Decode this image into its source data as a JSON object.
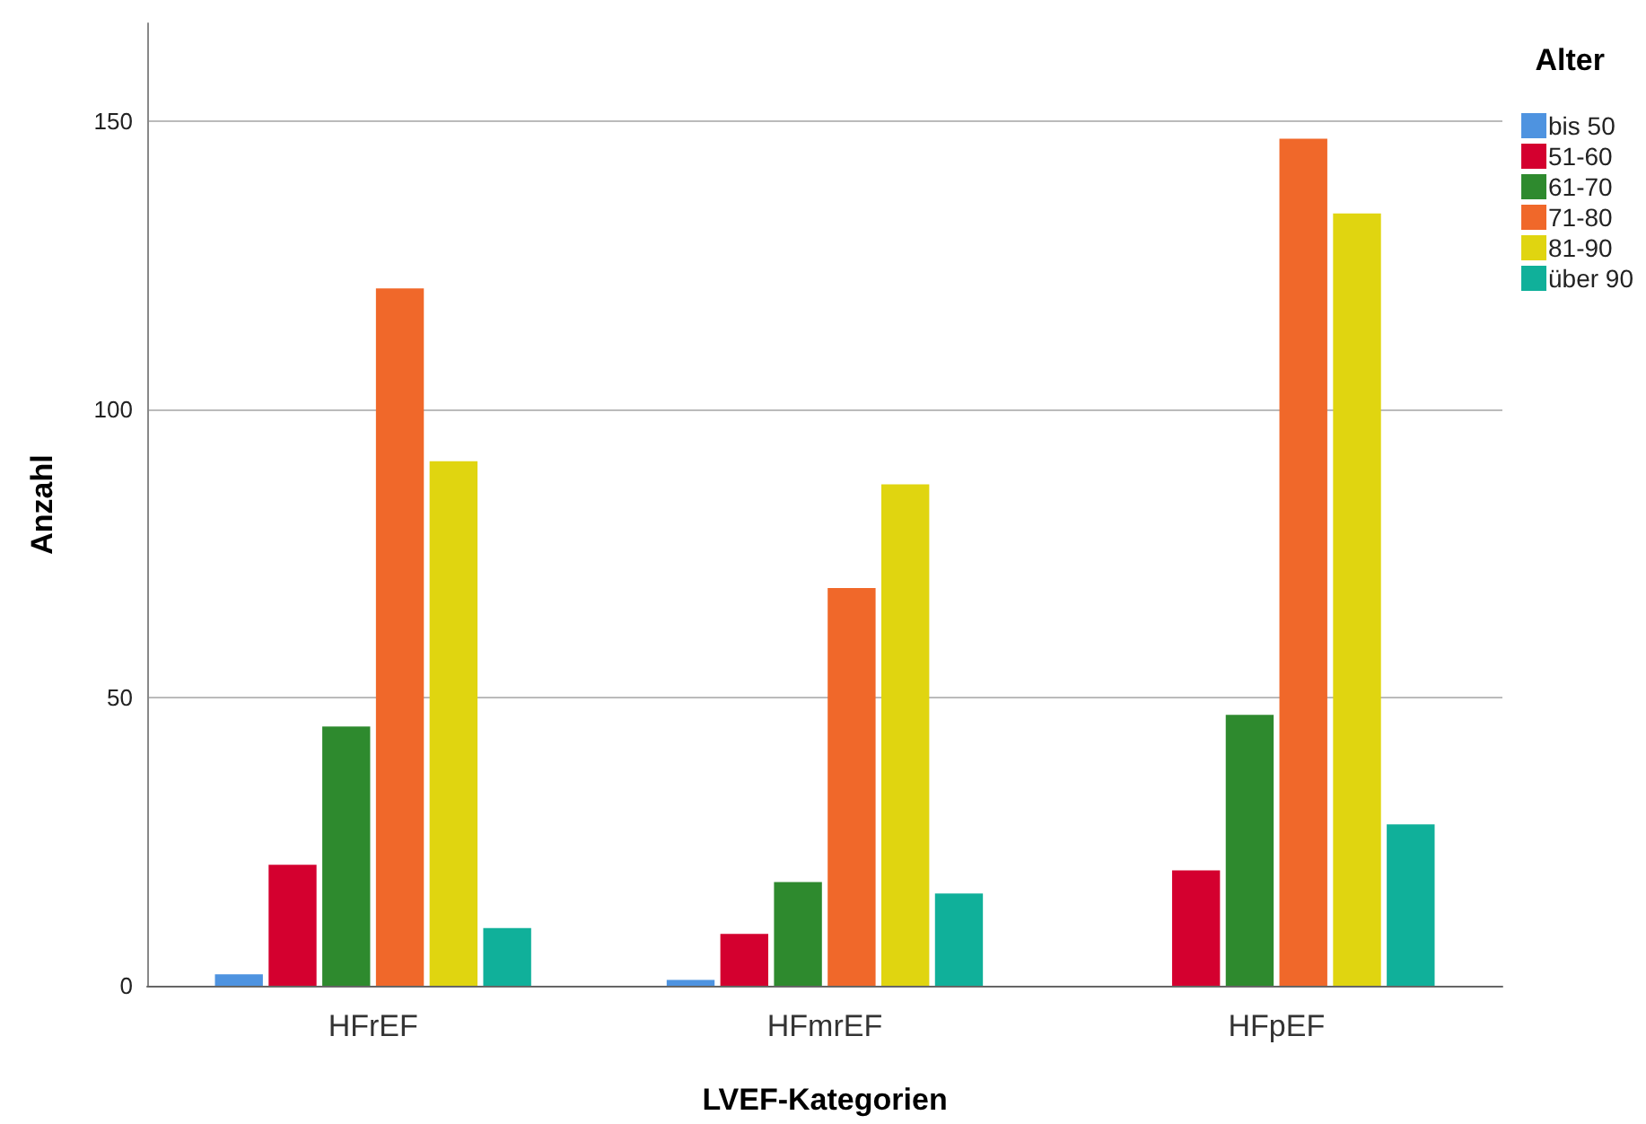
{
  "chart_data": {
    "type": "bar",
    "xlabel": "LVEF-Kategorien",
    "ylabel": "Anzahl",
    "legend_title": "Alter",
    "categories": [
      "HFrEF",
      "HFmrEF",
      "HFpEF"
    ],
    "series": [
      {
        "name": "bis 50",
        "color": "#4e93e0",
        "values": [
          2,
          1,
          0
        ]
      },
      {
        "name": "51-60",
        "color": "#d4002f",
        "values": [
          21,
          9,
          20
        ]
      },
      {
        "name": "61-70",
        "color": "#2e8a2e",
        "values": [
          45,
          18,
          47
        ]
      },
      {
        "name": "71-80",
        "color": "#f0682a",
        "values": [
          121,
          69,
          147
        ]
      },
      {
        "name": "81-90",
        "color": "#e0d510",
        "values": [
          91,
          87,
          134
        ]
      },
      {
        "name": "über 90",
        "color": "#10b09a",
        "values": [
          10,
          16,
          28
        ]
      }
    ],
    "ylim": [
      0,
      167
    ],
    "yticks": [
      0,
      50,
      100,
      150
    ],
    "grid": "y",
    "legend": "top right"
  }
}
